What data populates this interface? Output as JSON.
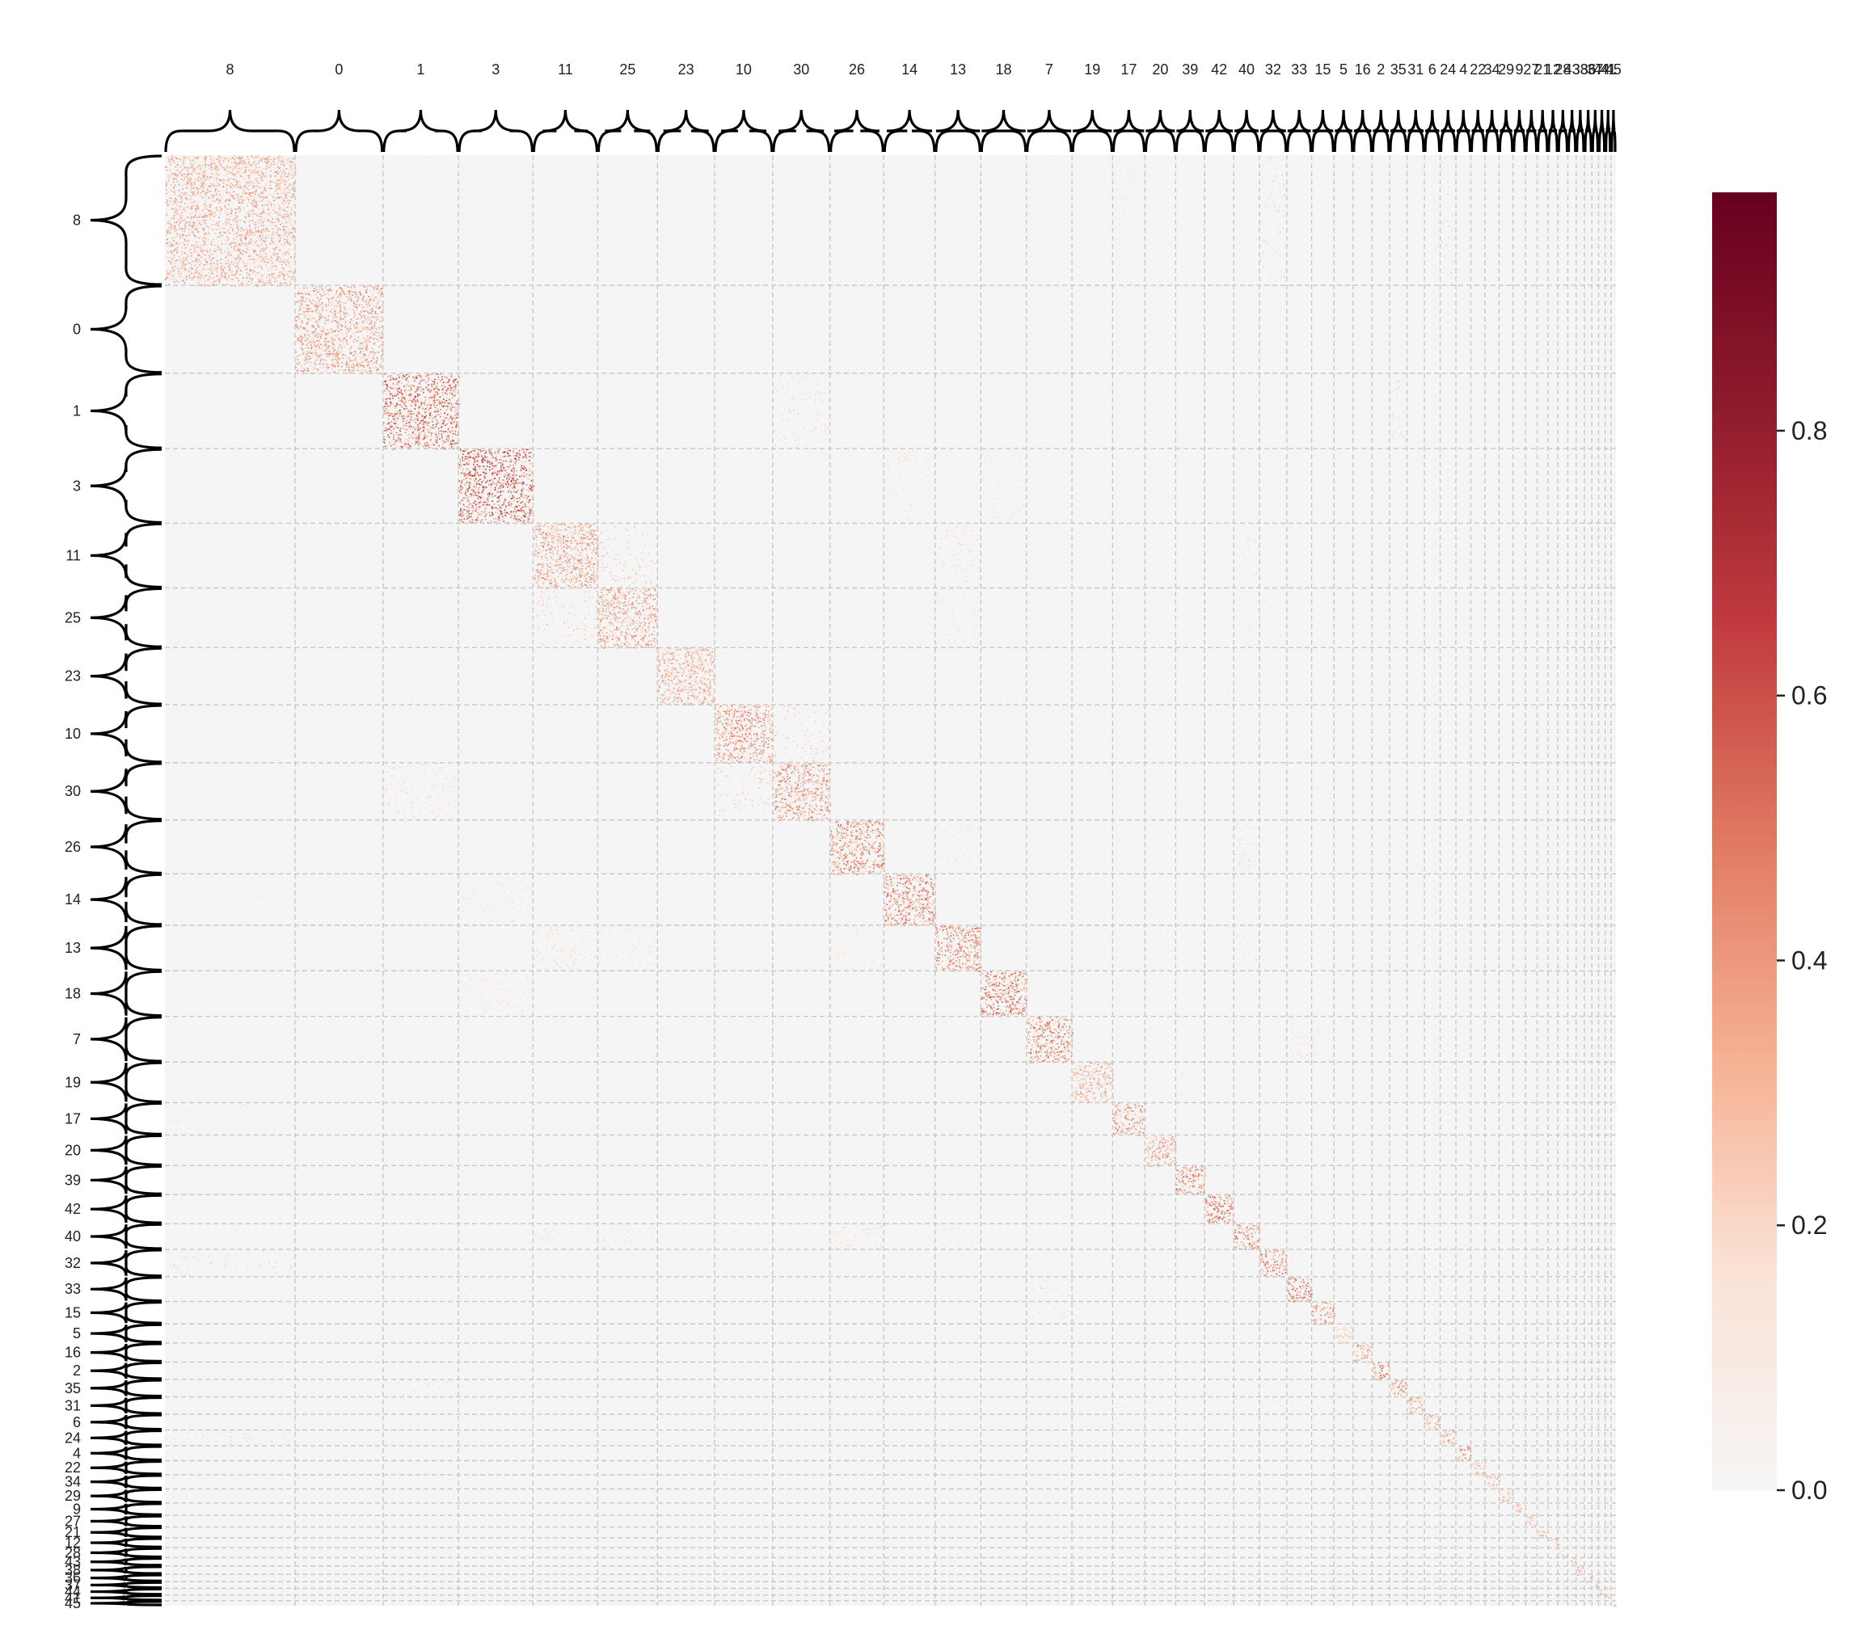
{
  "chart_data": {
    "type": "heatmap",
    "title": "",
    "xlabel": "",
    "ylabel": "",
    "cluster_order": [
      "8",
      "0",
      "1",
      "3",
      "11",
      "25",
      "23",
      "10",
      "30",
      "26",
      "14",
      "13",
      "18",
      "7",
      "19",
      "17",
      "20",
      "39",
      "42",
      "40",
      "32",
      "33",
      "15",
      "5",
      "16",
      "2",
      "35",
      "31",
      "6",
      "24",
      "4",
      "22",
      "34",
      "29",
      "9",
      "27",
      "21",
      "12",
      "28",
      "43",
      "38",
      "36",
      "37",
      "44",
      "41",
      "45"
    ],
    "colorbar": {
      "ticks": [
        0.0,
        0.2,
        0.4,
        0.6,
        0.8
      ],
      "tick_labels": [
        "0.0",
        "0.2",
        "0.4",
        "0.6",
        "0.8"
      ],
      "vmin": 0.0,
      "vmax": 0.98,
      "colors": [
        "#f5f5f5",
        "#fbe3d6",
        "#f6b092",
        "#e07a62",
        "#c13b3e",
        "#8e1b2b",
        "#67001f"
      ]
    },
    "color_meaning": "near-white = 0, dark red = high similarity",
    "grid": true,
    "grid_style": "dashed light gray lines between clusters",
    "brackets": "curly braces marking each cluster on top and left axes",
    "diagonal_block_intensity": [
      0.45,
      0.5,
      0.7,
      0.75,
      0.5,
      0.5,
      0.45,
      0.55,
      0.55,
      0.6,
      0.6,
      0.6,
      0.65,
      0.6,
      0.45,
      0.55,
      0.5,
      0.6,
      0.65,
      0.6,
      0.6,
      0.65,
      0.55,
      0.3,
      0.5,
      0.65,
      0.55,
      0.5,
      0.45,
      0.5,
      0.55,
      0.4,
      0.45,
      0.45,
      0.4,
      0.4,
      0.4,
      0.45,
      0.4,
      0.4,
      0.45,
      0.4,
      0.4,
      0.45,
      0.4,
      0.4
    ],
    "off_diagonal_hotspots": [
      {
        "row": "8",
        "col": "32",
        "intensity": 0.25
      },
      {
        "row": "8",
        "col": "24",
        "intensity": 0.25
      },
      {
        "row": "8",
        "col": "17",
        "intensity": 0.15
      },
      {
        "row": "1",
        "col": "30",
        "intensity": 0.25
      },
      {
        "row": "1",
        "col": "35",
        "intensity": 0.25
      },
      {
        "row": "3",
        "col": "18",
        "intensity": 0.2
      },
      {
        "row": "3",
        "col": "14",
        "intensity": 0.2
      },
      {
        "row": "11",
        "col": "25",
        "intensity": 0.3
      },
      {
        "row": "11",
        "col": "13",
        "intensity": 0.25
      },
      {
        "row": "25",
        "col": "13",
        "intensity": 0.2
      },
      {
        "row": "10",
        "col": "30",
        "intensity": 0.3
      },
      {
        "row": "26",
        "col": "40",
        "intensity": 0.25
      },
      {
        "row": "13",
        "col": "26",
        "intensity": 0.2
      },
      {
        "row": "7",
        "col": "33",
        "intensity": 0.25
      },
      {
        "row": "7",
        "col": "15",
        "intensity": 0.2
      },
      {
        "row": "40",
        "col": "11",
        "intensity": 0.2
      },
      {
        "row": "40",
        "col": "25",
        "intensity": 0.2
      },
      {
        "row": "40",
        "col": "26",
        "intensity": 0.2
      },
      {
        "row": "40",
        "col": "13",
        "intensity": 0.2
      },
      {
        "row": "32",
        "col": "31",
        "intensity": 0.2
      }
    ]
  }
}
